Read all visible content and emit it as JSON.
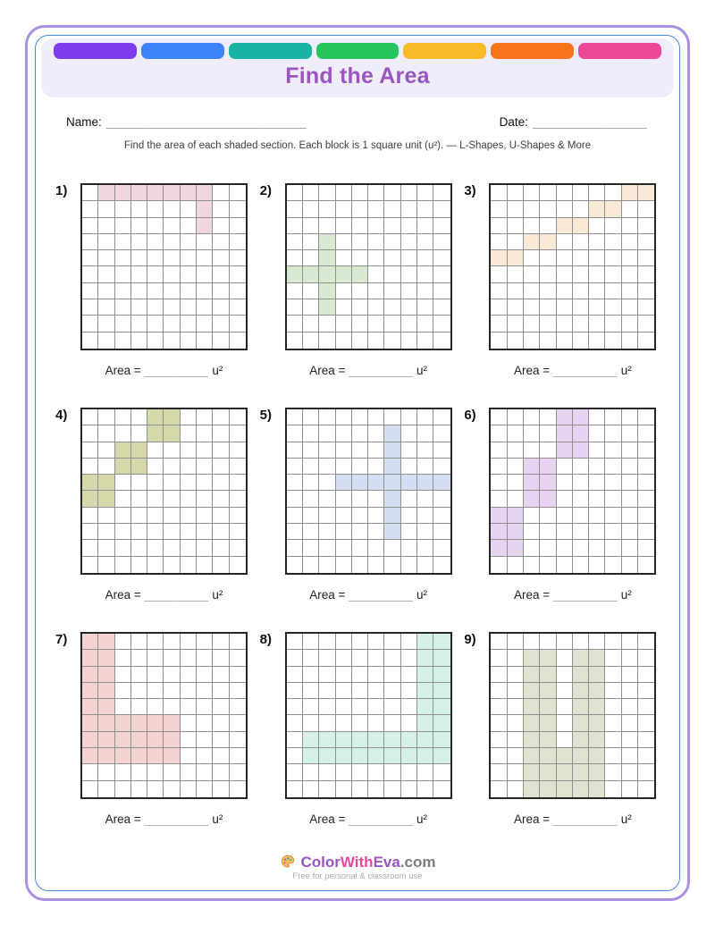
{
  "header": {
    "title": "Find the Area",
    "title_color": "#9a55c0",
    "bar_colors": [
      "#7d3bed",
      "#3d82f6",
      "#17b3a6",
      "#27c55e",
      "#f6bb27",
      "#f9731a",
      "#ec4899"
    ]
  },
  "fields": {
    "name_label": "Name:",
    "name_line": "____________________________",
    "date_label": "Date:",
    "date_line": "________________"
  },
  "instructions": "Find the area of each shaded section. Each block is 1 square unit (u²). — L-Shapes, U-Shapes & More",
  "area_label": {
    "prefix": "Area =",
    "blank": "_________",
    "suffix": "u²"
  },
  "grids": [
    {
      "number": "1)",
      "rows": 10,
      "cols": 10,
      "fill": "#f2d6df",
      "cells": [
        [
          0,
          1
        ],
        [
          0,
          2
        ],
        [
          0,
          3
        ],
        [
          0,
          4
        ],
        [
          0,
          5
        ],
        [
          0,
          6
        ],
        [
          0,
          7
        ],
        [
          1,
          7
        ],
        [
          2,
          7
        ]
      ]
    },
    {
      "number": "2)",
      "rows": 10,
      "cols": 10,
      "fill": "#d8e9d2",
      "cells": [
        [
          3,
          2
        ],
        [
          4,
          2
        ],
        [
          5,
          0
        ],
        [
          5,
          1
        ],
        [
          5,
          2
        ],
        [
          5,
          3
        ],
        [
          5,
          4
        ],
        [
          6,
          2
        ],
        [
          7,
          2
        ]
      ]
    },
    {
      "number": "3)",
      "rows": 10,
      "cols": 10,
      "fill": "#f8e8d6",
      "cells": [
        [
          0,
          8
        ],
        [
          0,
          9
        ],
        [
          1,
          6
        ],
        [
          1,
          7
        ],
        [
          2,
          4
        ],
        [
          2,
          5
        ],
        [
          3,
          2
        ],
        [
          3,
          3
        ],
        [
          4,
          0
        ],
        [
          4,
          1
        ]
      ]
    },
    {
      "number": "4)",
      "rows": 10,
      "cols": 10,
      "fill": "#d7d8a9",
      "cells": [
        [
          0,
          4
        ],
        [
          0,
          5
        ],
        [
          1,
          4
        ],
        [
          1,
          5
        ],
        [
          2,
          2
        ],
        [
          2,
          3
        ],
        [
          3,
          2
        ],
        [
          3,
          3
        ],
        [
          4,
          0
        ],
        [
          4,
          1
        ],
        [
          5,
          0
        ],
        [
          5,
          1
        ]
      ]
    },
    {
      "number": "5)",
      "rows": 10,
      "cols": 10,
      "fill": "#d3def1",
      "cells": [
        [
          1,
          6
        ],
        [
          2,
          6
        ],
        [
          3,
          6
        ],
        [
          4,
          3
        ],
        [
          4,
          4
        ],
        [
          4,
          5
        ],
        [
          4,
          6
        ],
        [
          4,
          7
        ],
        [
          4,
          8
        ],
        [
          4,
          9
        ],
        [
          5,
          6
        ],
        [
          6,
          6
        ],
        [
          7,
          6
        ]
      ]
    },
    {
      "number": "6)",
      "rows": 10,
      "cols": 10,
      "fill": "#e7d4f0",
      "cells": [
        [
          0,
          4
        ],
        [
          0,
          5
        ],
        [
          1,
          4
        ],
        [
          1,
          5
        ],
        [
          2,
          4
        ],
        [
          2,
          5
        ],
        [
          3,
          2
        ],
        [
          3,
          3
        ],
        [
          4,
          2
        ],
        [
          4,
          3
        ],
        [
          5,
          2
        ],
        [
          5,
          3
        ],
        [
          6,
          0
        ],
        [
          6,
          1
        ],
        [
          7,
          0
        ],
        [
          7,
          1
        ],
        [
          8,
          0
        ],
        [
          8,
          1
        ]
      ]
    },
    {
      "number": "7)",
      "rows": 10,
      "cols": 10,
      "fill": "#f3d2d2",
      "cells": [
        [
          0,
          0
        ],
        [
          0,
          1
        ],
        [
          1,
          0
        ],
        [
          1,
          1
        ],
        [
          2,
          0
        ],
        [
          2,
          1
        ],
        [
          3,
          0
        ],
        [
          3,
          1
        ],
        [
          4,
          0
        ],
        [
          4,
          1
        ],
        [
          5,
          0
        ],
        [
          5,
          1
        ],
        [
          5,
          2
        ],
        [
          5,
          3
        ],
        [
          5,
          4
        ],
        [
          5,
          5
        ],
        [
          6,
          0
        ],
        [
          6,
          1
        ],
        [
          6,
          2
        ],
        [
          6,
          3
        ],
        [
          6,
          4
        ],
        [
          6,
          5
        ],
        [
          7,
          0
        ],
        [
          7,
          1
        ],
        [
          7,
          2
        ],
        [
          7,
          3
        ],
        [
          7,
          4
        ],
        [
          7,
          5
        ]
      ]
    },
    {
      "number": "8)",
      "rows": 10,
      "cols": 10,
      "fill": "#d4f0e7",
      "cells": [
        [
          0,
          8
        ],
        [
          0,
          9
        ],
        [
          1,
          8
        ],
        [
          1,
          9
        ],
        [
          2,
          8
        ],
        [
          2,
          9
        ],
        [
          3,
          8
        ],
        [
          3,
          9
        ],
        [
          4,
          8
        ],
        [
          4,
          9
        ],
        [
          5,
          8
        ],
        [
          5,
          9
        ],
        [
          6,
          1
        ],
        [
          6,
          2
        ],
        [
          6,
          3
        ],
        [
          6,
          4
        ],
        [
          6,
          5
        ],
        [
          6,
          6
        ],
        [
          6,
          7
        ],
        [
          6,
          8
        ],
        [
          6,
          9
        ],
        [
          7,
          1
        ],
        [
          7,
          2
        ],
        [
          7,
          3
        ],
        [
          7,
          4
        ],
        [
          7,
          5
        ],
        [
          7,
          6
        ],
        [
          7,
          7
        ],
        [
          7,
          8
        ],
        [
          7,
          9
        ]
      ]
    },
    {
      "number": "9)",
      "rows": 10,
      "cols": 10,
      "fill": "#e2e2d0",
      "cells": [
        [
          1,
          2
        ],
        [
          1,
          3
        ],
        [
          1,
          5
        ],
        [
          1,
          6
        ],
        [
          2,
          2
        ],
        [
          2,
          3
        ],
        [
          2,
          5
        ],
        [
          2,
          6
        ],
        [
          3,
          2
        ],
        [
          3,
          3
        ],
        [
          3,
          5
        ],
        [
          3,
          6
        ],
        [
          4,
          2
        ],
        [
          4,
          3
        ],
        [
          4,
          5
        ],
        [
          4,
          6
        ],
        [
          5,
          2
        ],
        [
          5,
          3
        ],
        [
          5,
          5
        ],
        [
          5,
          6
        ],
        [
          6,
          2
        ],
        [
          6,
          3
        ],
        [
          6,
          5
        ],
        [
          6,
          6
        ],
        [
          7,
          2
        ],
        [
          7,
          3
        ],
        [
          7,
          4
        ],
        [
          7,
          5
        ],
        [
          7,
          6
        ],
        [
          8,
          2
        ],
        [
          8,
          3
        ],
        [
          8,
          4
        ],
        [
          8,
          5
        ],
        [
          8,
          6
        ],
        [
          9,
          2
        ],
        [
          9,
          3
        ],
        [
          9,
          4
        ],
        [
          9,
          5
        ],
        [
          9,
          6
        ]
      ]
    }
  ],
  "footer": {
    "brand": [
      {
        "text": "Color",
        "color": "#9a55c0"
      },
      {
        "text": "With",
        "color": "#e8489b"
      },
      {
        "text": "Eva",
        "color": "#9a55c0"
      },
      {
        "text": ".com",
        "color": "#7d7d7d"
      }
    ],
    "tagline": "Free for personal & classroom use"
  }
}
